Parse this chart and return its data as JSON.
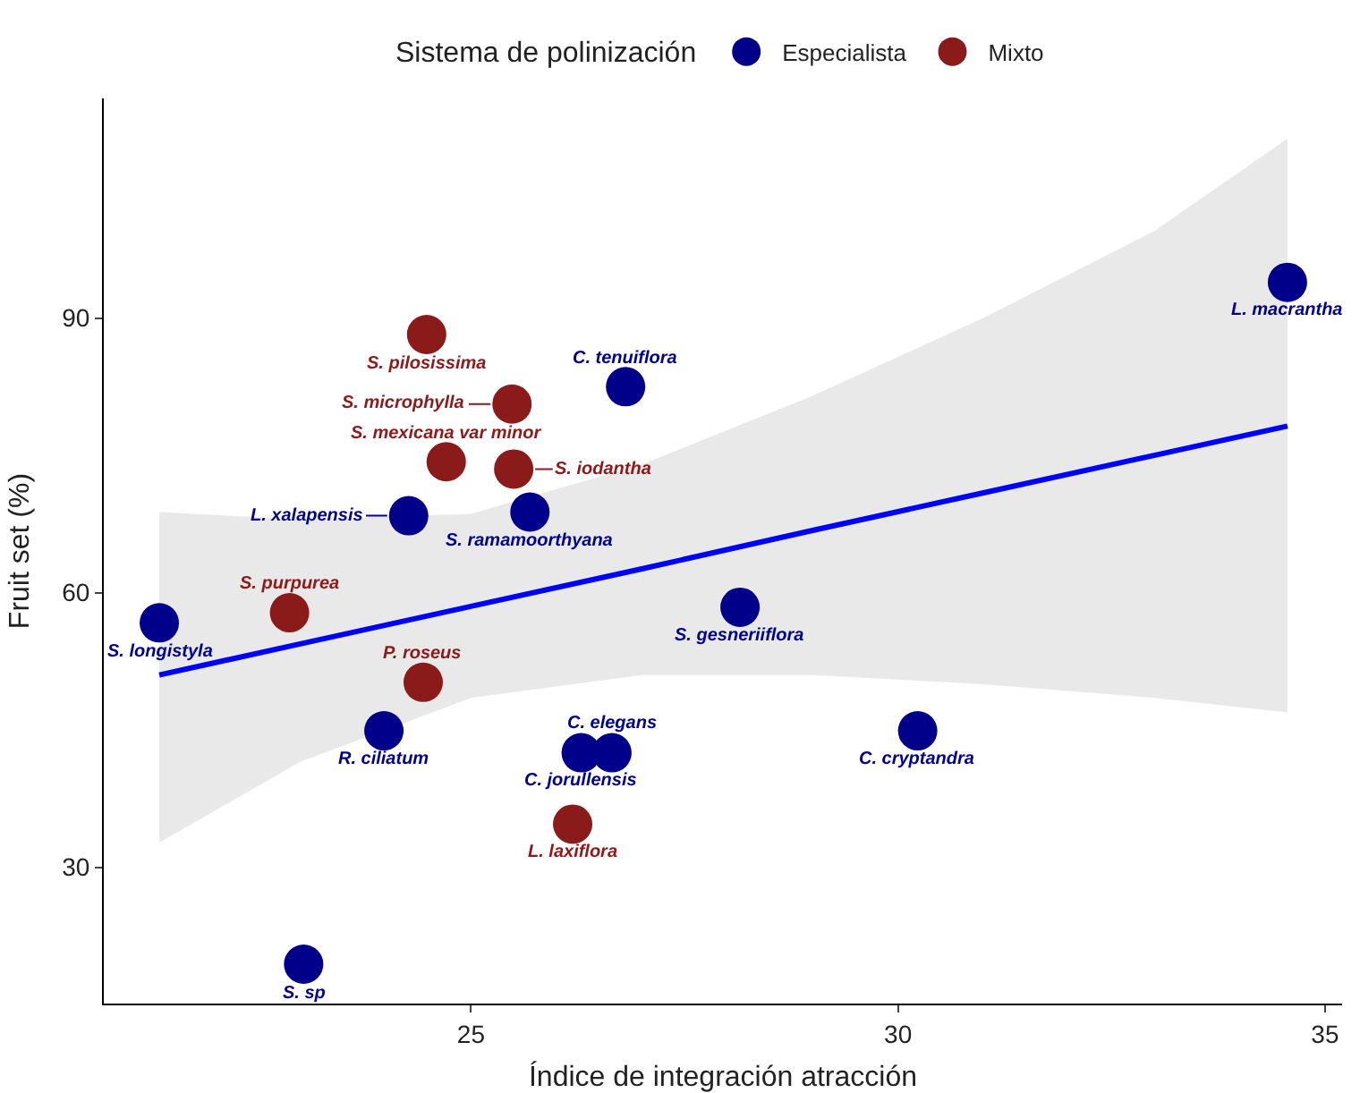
{
  "chart_data": {
    "type": "scatter",
    "xlabel": "Índice de integración atracción",
    "ylabel": "Fruit set (%)",
    "legend_title": "Sistema de polinización",
    "legend": "top",
    "grid": false,
    "marker": "circle",
    "xlim": [
      20.7,
      35.2
    ],
    "ylim": [
      15.1,
      114
    ],
    "xticks": [
      25,
      30,
      35
    ],
    "yticks": [
      30,
      60,
      90
    ],
    "series": [
      {
        "type": "line",
        "color": "#0000ff",
        "marker": "none",
        "line_style": "solid",
        "x": [
          21.35,
          23,
          25,
          27,
          29,
          31,
          33,
          34.56
        ],
        "values": [
          51.0,
          54.4,
          58.5,
          62.6,
          66.8,
          70.9,
          75.0,
          78.2
        ],
        "lower": [
          32.7,
          41.5,
          48.5,
          51,
          51,
          50,
          48.5,
          46.9
        ],
        "upper": [
          68.8,
          68.0,
          68.6,
          74.0,
          81.5,
          90,
          99.5,
          109.6
        ]
      },
      {
        "name": "Especialista",
        "color": "#00008b",
        "x": [
          34.56,
          26.81,
          24.27,
          25.69,
          21.35,
          28.15,
          23.98,
          26.29,
          26.65,
          30.23,
          23.04
        ],
        "values": [
          93.9,
          82.5,
          68.4,
          68.8,
          56.7,
          58.4,
          44.9,
          42.5,
          42.5,
          44.9,
          19.4
        ]
      },
      {
        "name": "Mixto",
        "color": "#8b1a1a",
        "x": [
          24.48,
          25.48,
          24.71,
          25.5,
          22.875,
          24.44,
          26.19
        ],
        "values": [
          88.2,
          80.6,
          74.3,
          73.5,
          57.8,
          50.2,
          34.7
        ]
      }
    ],
    "annotations": [
      {
        "text": "L. macrantha",
        "x": 34.56,
        "y": 93.9
      },
      {
        "text": "C. tenuiflora",
        "x": 26.81,
        "y": 82.5
      },
      {
        "text": "L. xalapensis",
        "x": 24.27,
        "y": 68.4
      },
      {
        "text": "S. ramamoorthyana",
        "x": 25.69,
        "y": 68.8
      },
      {
        "text": "S. longistyla",
        "x": 21.35,
        "y": 56.7
      },
      {
        "text": "S. gesneriiflora",
        "x": 28.15,
        "y": 58.4
      },
      {
        "text": "R. ciliatum",
        "x": 23.98,
        "y": 44.9
      },
      {
        "text": "C. jorullensis",
        "x": 26.29,
        "y": 42.5
      },
      {
        "text": "C. elegans",
        "x": 26.65,
        "y": 42.5
      },
      {
        "text": "C. cryptandra",
        "x": 30.23,
        "y": 44.9
      },
      {
        "text": "S. sp",
        "x": 23.04,
        "y": 19.4
      },
      {
        "text": "S. pilosissima",
        "x": 24.48,
        "y": 88.2
      },
      {
        "text": "S. microphylla",
        "x": 25.48,
        "y": 80.6
      },
      {
        "text": "S. mexicana var minor",
        "x": 24.71,
        "y": 74.3
      },
      {
        "text": "S. iodantha",
        "x": 25.5,
        "y": 73.5
      },
      {
        "text": "S. purpurea",
        "x": 22.875,
        "y": 57.8
      },
      {
        "text": "P. roseus",
        "x": 24.44,
        "y": 50.2
      },
      {
        "text": "L. laxiflora",
        "x": 26.19,
        "y": 34.7
      }
    ]
  }
}
